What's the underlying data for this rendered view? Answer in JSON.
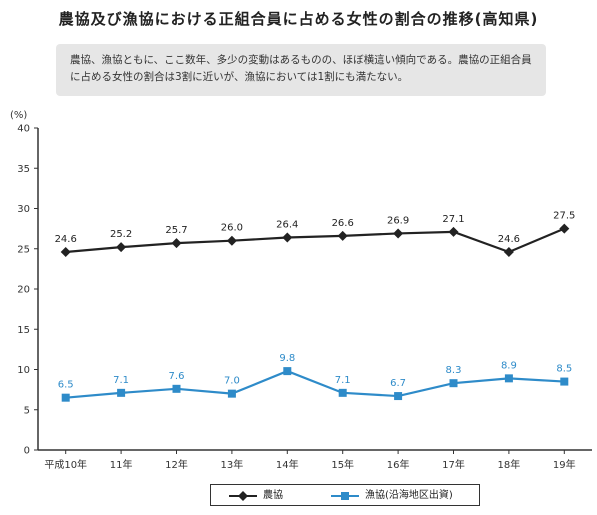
{
  "title": "農協及び漁協における正組合員に占める女性の割合の推移(高知県)",
  "note": "農協、漁協ともに、ここ数年、多少の変動はあるものの、ほぼ横這い傾向である。農協の正組合員に占める女性の割合は3割に近いが、漁協においては1割にも満たない。",
  "chart_data": {
    "type": "line",
    "title": "農協及び漁協における正組合員に占める女性の割合の推移(高知県)",
    "ylabel": "(%)",
    "ylim": [
      0,
      40
    ],
    "yticks": [
      0,
      5,
      10,
      15,
      20,
      25,
      30,
      35,
      40
    ],
    "categories": [
      "平成10年",
      "11年",
      "12年",
      "13年",
      "14年",
      "15年",
      "16年",
      "17年",
      "18年",
      "19年"
    ],
    "series": [
      {
        "name": "農協",
        "values": [
          24.6,
          25.2,
          25.7,
          26.0,
          26.4,
          26.6,
          26.9,
          27.1,
          24.6,
          27.5
        ],
        "labels": [
          "24.6",
          "25.2",
          "25.7",
          "26.0",
          "26.4",
          "26.6",
          "26.9",
          "27.1",
          "24.6",
          "27.5"
        ],
        "color": "#222222",
        "marker": "diamond"
      },
      {
        "name": "漁協(沿海地区出資)",
        "values": [
          6.5,
          7.1,
          7.6,
          7.0,
          9.8,
          7.1,
          6.7,
          8.3,
          8.9,
          8.5
        ],
        "labels": [
          "6.5",
          "7.1",
          "7.6",
          "7.0",
          "9.8",
          "7.1",
          "6.7",
          "8.3",
          "8.9",
          "8.5"
        ],
        "color": "#2e8bc9",
        "marker": "square"
      }
    ],
    "grid": false,
    "legend": "bottom"
  }
}
